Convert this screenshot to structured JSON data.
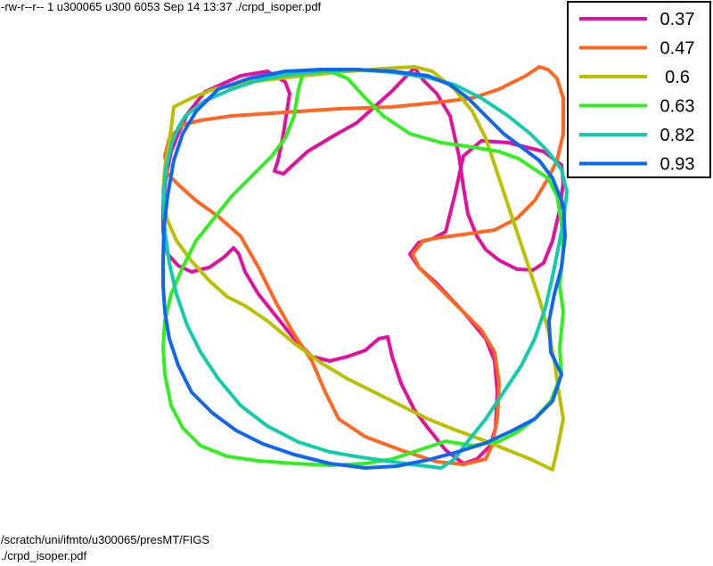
{
  "header": {
    "file_listing": "-rw-r--r-- 1 u300065 u300 6053 Sep 14 13:37 ./crpd_isoper.pdf"
  },
  "footer": {
    "path": "/scratch/uni/ifmto/u300065/presMT/FIGS",
    "file": "./crpd_isoper.pdf"
  },
  "chart_data": {
    "type": "line",
    "title": "",
    "xlabel": "",
    "ylabel": "",
    "grid": false,
    "legend_position": "top-right",
    "xlim": [
      180,
      636
    ],
    "ylim": [
      527,
      74
    ],
    "series": [
      {
        "name": "0.37",
        "color": "#e0119e",
        "points": [
          [
            210,
            128
          ],
          [
            230,
            103
          ],
          [
            270,
            85
          ],
          [
            300,
            80
          ],
          [
            320,
            92
          ],
          [
            325,
            105
          ],
          [
            318,
            150
          ],
          [
            312,
            180
          ],
          [
            308,
            192
          ],
          [
            318,
            195
          ],
          [
            345,
            170
          ],
          [
            375,
            152
          ],
          [
            400,
            138
          ],
          [
            440,
            102
          ],
          [
            465,
            76
          ],
          [
            475,
            90
          ],
          [
            490,
            105
          ],
          [
            505,
            130
          ],
          [
            515,
            175
          ],
          [
            520,
            210
          ],
          [
            525,
            240
          ],
          [
            535,
            265
          ],
          [
            545,
            280
          ],
          [
            560,
            292
          ],
          [
            580,
            302
          ],
          [
            598,
            303
          ],
          [
            610,
            295
          ],
          [
            620,
            270
          ],
          [
            628,
            235
          ],
          [
            632,
            205
          ],
          [
            630,
            185
          ],
          [
            610,
            170
          ],
          [
            570,
            160
          ],
          [
            540,
            158
          ],
          [
            520,
            175
          ],
          [
            510,
            220
          ],
          [
            500,
            260
          ],
          [
            485,
            268
          ],
          [
            470,
            272
          ],
          [
            460,
            285
          ],
          [
            470,
            300
          ],
          [
            490,
            318
          ],
          [
            520,
            350
          ],
          [
            545,
            380
          ],
          [
            555,
            405
          ],
          [
            558,
            440
          ],
          [
            556,
            480
          ],
          [
            550,
            500
          ],
          [
            535,
            515
          ],
          [
            520,
            520
          ],
          [
            500,
            505
          ],
          [
            480,
            480
          ],
          [
            465,
            460
          ],
          [
            450,
            430
          ],
          [
            440,
            400
          ],
          [
            435,
            378
          ],
          [
            425,
            380
          ],
          [
            410,
            393
          ],
          [
            390,
            400
          ],
          [
            370,
            405
          ],
          [
            350,
            400
          ],
          [
            330,
            380
          ],
          [
            310,
            355
          ],
          [
            290,
            330
          ],
          [
            275,
            305
          ],
          [
            268,
            285
          ],
          [
            262,
            278
          ],
          [
            252,
            288
          ],
          [
            235,
            300
          ],
          [
            215,
            305
          ],
          [
            200,
            298
          ],
          [
            188,
            285
          ],
          [
            183,
            260
          ],
          [
            183,
            230
          ],
          [
            186,
            200
          ],
          [
            192,
            170
          ],
          [
            200,
            150
          ],
          [
            210,
            128
          ]
        ]
      },
      {
        "name": "0.47",
        "color": "#ff6622",
        "points": [
          [
            185,
            175
          ],
          [
            190,
            155
          ],
          [
            205,
            140
          ],
          [
            225,
            135
          ],
          [
            260,
            130
          ],
          [
            320,
            126
          ],
          [
            380,
            122
          ],
          [
            440,
            120
          ],
          [
            490,
            115
          ],
          [
            530,
            110
          ],
          [
            560,
            100
          ],
          [
            590,
            85
          ],
          [
            605,
            75
          ],
          [
            615,
            78
          ],
          [
            625,
            88
          ],
          [
            632,
            110
          ],
          [
            632,
            150
          ],
          [
            625,
            180
          ],
          [
            615,
            200
          ],
          [
            600,
            225
          ],
          [
            580,
            245
          ],
          [
            555,
            258
          ],
          [
            520,
            263
          ],
          [
            490,
            267
          ],
          [
            475,
            270
          ],
          [
            463,
            285
          ],
          [
            470,
            300
          ],
          [
            490,
            320
          ],
          [
            515,
            345
          ],
          [
            540,
            370
          ],
          [
            555,
            395
          ],
          [
            560,
            430
          ],
          [
            558,
            470
          ],
          [
            552,
            500
          ],
          [
            545,
            515
          ],
          [
            520,
            521
          ],
          [
            490,
            518
          ],
          [
            450,
            505
          ],
          [
            410,
            490
          ],
          [
            380,
            470
          ],
          [
            365,
            440
          ],
          [
            350,
            405
          ],
          [
            330,
            375
          ],
          [
            310,
            340
          ],
          [
            290,
            300
          ],
          [
            270,
            265
          ],
          [
            245,
            243
          ],
          [
            220,
            225
          ],
          [
            200,
            207
          ],
          [
            188,
            195
          ],
          [
            185,
            175
          ]
        ]
      },
      {
        "name": "0.6",
        "color": "#b8c000",
        "points": [
          [
            195,
            120
          ],
          [
            215,
            110
          ],
          [
            240,
            100
          ],
          [
            280,
            92
          ],
          [
            330,
            86
          ],
          [
            380,
            81
          ],
          [
            430,
            77
          ],
          [
            465,
            75
          ],
          [
            485,
            80
          ],
          [
            510,
            100
          ],
          [
            530,
            125
          ],
          [
            545,
            155
          ],
          [
            555,
            185
          ],
          [
            565,
            215
          ],
          [
            575,
            245
          ],
          [
            585,
            275
          ],
          [
            595,
            305
          ],
          [
            605,
            335
          ],
          [
            615,
            370
          ],
          [
            622,
            405
          ],
          [
            627,
            440
          ],
          [
            632,
            470
          ],
          [
            625,
            505
          ],
          [
            620,
            527
          ],
          [
            595,
            515
          ],
          [
            570,
            505
          ],
          [
            540,
            493
          ],
          [
            510,
            482
          ],
          [
            480,
            470
          ],
          [
            450,
            455
          ],
          [
            420,
            440
          ],
          [
            390,
            425
          ],
          [
            360,
            407
          ],
          [
            330,
            385
          ],
          [
            300,
            360
          ],
          [
            275,
            343
          ],
          [
            255,
            333
          ],
          [
            235,
            315
          ],
          [
            215,
            293
          ],
          [
            198,
            270
          ],
          [
            187,
            245
          ],
          [
            183,
            215
          ],
          [
            185,
            188
          ],
          [
            190,
            160
          ],
          [
            195,
            120
          ]
        ]
      },
      {
        "name": "0.63",
        "color": "#33ee22",
        "points": [
          [
            340,
            82
          ],
          [
            370,
            80
          ],
          [
            390,
            88
          ],
          [
            410,
            110
          ],
          [
            430,
            130
          ],
          [
            460,
            150
          ],
          [
            495,
            160
          ],
          [
            530,
            165
          ],
          [
            560,
            170
          ],
          [
            582,
            178
          ],
          [
            600,
            190
          ],
          [
            615,
            200
          ],
          [
            625,
            220
          ],
          [
            630,
            250
          ],
          [
            632,
            280
          ],
          [
            628,
            320
          ],
          [
            632,
            350
          ],
          [
            628,
            390
          ],
          [
            630,
            420
          ],
          [
            618,
            450
          ],
          [
            600,
            470
          ],
          [
            580,
            485
          ],
          [
            560,
            495
          ],
          [
            530,
            500
          ],
          [
            500,
            495
          ],
          [
            470,
            505
          ],
          [
            440,
            515
          ],
          [
            410,
            520
          ],
          [
            370,
            522
          ],
          [
            330,
            520
          ],
          [
            290,
            517
          ],
          [
            255,
            512
          ],
          [
            225,
            500
          ],
          [
            205,
            480
          ],
          [
            192,
            455
          ],
          [
            185,
            420
          ],
          [
            183,
            390
          ],
          [
            185,
            360
          ],
          [
            192,
            330
          ],
          [
            205,
            300
          ],
          [
            220,
            270
          ],
          [
            240,
            245
          ],
          [
            260,
            220
          ],
          [
            285,
            195
          ],
          [
            305,
            175
          ],
          [
            320,
            155
          ],
          [
            330,
            130
          ],
          [
            335,
            100
          ],
          [
            340,
            82
          ]
        ]
      },
      {
        "name": "0.82",
        "color": "#11ccaa",
        "points": [
          [
            208,
            130
          ],
          [
            230,
            113
          ],
          [
            260,
            100
          ],
          [
            290,
            90
          ],
          [
            320,
            84
          ],
          [
            360,
            80
          ],
          [
            400,
            78
          ],
          [
            440,
            81
          ],
          [
            480,
            87
          ],
          [
            510,
            95
          ],
          [
            540,
            110
          ],
          [
            570,
            130
          ],
          [
            595,
            150
          ],
          [
            615,
            170
          ],
          [
            630,
            190
          ],
          [
            636,
            215
          ],
          [
            632,
            250
          ],
          [
            626,
            280
          ],
          [
            620,
            310
          ],
          [
            612,
            345
          ],
          [
            600,
            380
          ],
          [
            585,
            410
          ],
          [
            565,
            440
          ],
          [
            545,
            470
          ],
          [
            525,
            495
          ],
          [
            510,
            515
          ],
          [
            495,
            525
          ],
          [
            470,
            522
          ],
          [
            440,
            518
          ],
          [
            405,
            513
          ],
          [
            370,
            507
          ],
          [
            335,
            496
          ],
          [
            300,
            478
          ],
          [
            270,
            455
          ],
          [
            245,
            425
          ],
          [
            225,
            395
          ],
          [
            210,
            365
          ],
          [
            198,
            330
          ],
          [
            190,
            295
          ],
          [
            185,
            260
          ],
          [
            183,
            225
          ],
          [
            186,
            190
          ],
          [
            193,
            160
          ],
          [
            200,
            143
          ],
          [
            208,
            130
          ]
        ]
      },
      {
        "name": "0.93",
        "color": "#1166ee",
        "points": [
          [
            245,
            100
          ],
          [
            280,
            88
          ],
          [
            320,
            80
          ],
          [
            360,
            78
          ],
          [
            400,
            78
          ],
          [
            440,
            80
          ],
          [
            480,
            85
          ],
          [
            505,
            95
          ],
          [
            525,
            110
          ],
          [
            545,
            130
          ],
          [
            565,
            150
          ],
          [
            585,
            165
          ],
          [
            605,
            180
          ],
          [
            620,
            200
          ],
          [
            632,
            230
          ],
          [
            634,
            265
          ],
          [
            630,
            300
          ],
          [
            622,
            330
          ],
          [
            616,
            360
          ],
          [
            618,
            395
          ],
          [
            630,
            420
          ],
          [
            620,
            450
          ],
          [
            600,
            470
          ],
          [
            575,
            483
          ],
          [
            545,
            497
          ],
          [
            510,
            508
          ],
          [
            480,
            516
          ],
          [
            445,
            523
          ],
          [
            410,
            525
          ],
          [
            370,
            520
          ],
          [
            330,
            510
          ],
          [
            295,
            498
          ],
          [
            265,
            483
          ],
          [
            238,
            463
          ],
          [
            215,
            440
          ],
          [
            200,
            410
          ],
          [
            190,
            380
          ],
          [
            185,
            350
          ],
          [
            183,
            320
          ],
          [
            183,
            290
          ],
          [
            184,
            255
          ],
          [
            188,
            220
          ],
          [
            195,
            180
          ],
          [
            205,
            150
          ],
          [
            220,
            125
          ],
          [
            245,
            100
          ]
        ]
      }
    ]
  }
}
